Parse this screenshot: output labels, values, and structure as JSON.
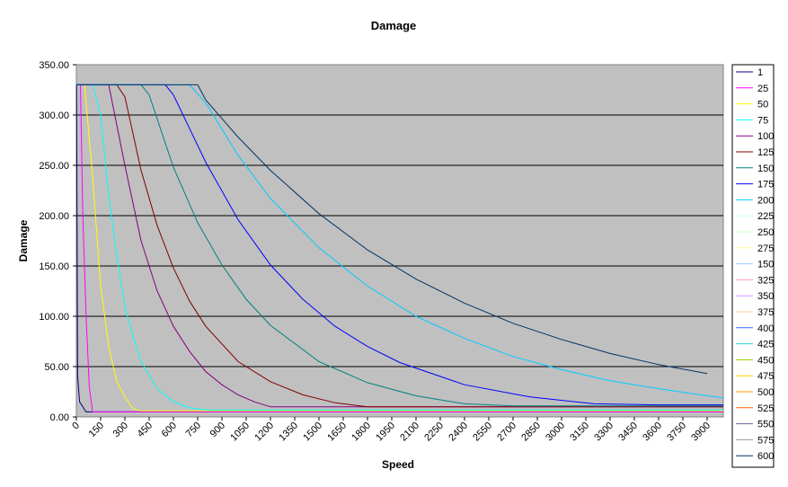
{
  "chart_data": {
    "type": "line",
    "title": "Damage",
    "xlabel": "Speed",
    "ylabel": "Damage",
    "xlim": [
      0,
      4000
    ],
    "ylim": [
      0,
      350
    ],
    "y_ticks": [
      "0.00",
      "50.00",
      "100.00",
      "150.00",
      "200.00",
      "250.00",
      "300.00",
      "350.00"
    ],
    "x_ticks": [
      "0",
      "150",
      "300",
      "450",
      "600",
      "750",
      "900",
      "1050",
      "1200",
      "1350",
      "1500",
      "1650",
      "1800",
      "1950",
      "2100",
      "2250",
      "2400",
      "2550",
      "2700",
      "2850",
      "3000",
      "3150",
      "3300",
      "3450",
      "3600",
      "3750",
      "3900"
    ],
    "grid": "horizontal",
    "legend_position": "right",
    "plot_background": "#C0C0C0",
    "series": [
      {
        "name": "1",
        "color": "#000080",
        "x": [
          0,
          1,
          8,
          20,
          60,
          4000
        ],
        "y": [
          330,
          330,
          40,
          15,
          5,
          5
        ]
      },
      {
        "name": "25",
        "color": "#FF00FF",
        "x": [
          0,
          25,
          40,
          60,
          80,
          100,
          160,
          4000
        ],
        "y": [
          330,
          330,
          200,
          100,
          30,
          5,
          5,
          5
        ]
      },
      {
        "name": "50",
        "color": "#FFFF00",
        "x": [
          0,
          50,
          100,
          150,
          200,
          250,
          300,
          350,
          400,
          4000
        ],
        "y": [
          330,
          330,
          240,
          130,
          70,
          35,
          20,
          8,
          6,
          6
        ]
      },
      {
        "name": "75",
        "color": "#00FFFF",
        "x": [
          0,
          100,
          150,
          200,
          250,
          300,
          350,
          400,
          500,
          600,
          700,
          800,
          4000
        ],
        "y": [
          330,
          330,
          300,
          220,
          160,
          110,
          80,
          55,
          28,
          15,
          9,
          7,
          7
        ]
      },
      {
        "name": "100",
        "color": "#800080",
        "x": [
          0,
          200,
          300,
          400,
          500,
          600,
          700,
          800,
          900,
          1000,
          1100,
          1200,
          4000
        ],
        "y": [
          330,
          330,
          250,
          175,
          125,
          90,
          65,
          45,
          32,
          22,
          15,
          10,
          10
        ]
      },
      {
        "name": "125",
        "color": "#800000",
        "x": [
          0,
          250,
          300,
          400,
          500,
          600,
          700,
          800,
          1000,
          1200,
          1400,
          1600,
          1800,
          4000
        ],
        "y": [
          330,
          330,
          318,
          245,
          190,
          148,
          115,
          90,
          55,
          35,
          22,
          14,
          10,
          10
        ]
      },
      {
        "name": "150",
        "color": "#008080",
        "x": [
          0,
          400,
          450,
          600,
          750,
          900,
          1050,
          1200,
          1500,
          1800,
          2100,
          2400,
          2700,
          4000
        ],
        "y": [
          330,
          330,
          320,
          248,
          193,
          151,
          117,
          91,
          55,
          34,
          21,
          13,
          11,
          11
        ]
      },
      {
        "name": "175",
        "color": "#0000FF",
        "x": [
          0,
          550,
          600,
          800,
          1000,
          1200,
          1400,
          1600,
          1800,
          2000,
          2400,
          2800,
          3200,
          3600,
          4000
        ],
        "y": [
          330,
          330,
          320,
          253,
          196,
          151,
          117,
          90,
          70,
          54,
          32,
          20,
          13,
          12,
          12
        ]
      },
      {
        "name": "200",
        "color": "#00CCFF",
        "x": [
          0,
          700,
          800,
          1000,
          1200,
          1500,
          1800,
          2100,
          2400,
          2700,
          3000,
          3300,
          3600,
          3900,
          4000
        ],
        "y": [
          330,
          330,
          312,
          260,
          217,
          168,
          130,
          100,
          78,
          60,
          47,
          36,
          28,
          21,
          19
        ]
      },
      {
        "name": "225",
        "color": "#CCFFFF",
        "x": [],
        "y": []
      },
      {
        "name": "250",
        "color": "#CCFFCC",
        "x": [],
        "y": []
      },
      {
        "name": "275",
        "color": "#FFFF99",
        "x": [],
        "y": []
      },
      {
        "name": "150",
        "color": "#99CCFF",
        "x": [],
        "y": []
      },
      {
        "name": "325",
        "color": "#FF99CC",
        "x": [],
        "y": []
      },
      {
        "name": "350",
        "color": "#CC99FF",
        "x": [],
        "y": []
      },
      {
        "name": "375",
        "color": "#FFCC99",
        "x": [],
        "y": []
      },
      {
        "name": "400",
        "color": "#3366FF",
        "x": [],
        "y": []
      },
      {
        "name": "425",
        "color": "#33CCCC",
        "x": [],
        "y": []
      },
      {
        "name": "450",
        "color": "#99CC00",
        "x": [],
        "y": []
      },
      {
        "name": "475",
        "color": "#FFCC00",
        "x": [],
        "y": []
      },
      {
        "name": "500",
        "color": "#FF9900",
        "x": [],
        "y": []
      },
      {
        "name": "525",
        "color": "#FF6600",
        "x": [],
        "y": []
      },
      {
        "name": "550",
        "color": "#666699",
        "x": [],
        "y": []
      },
      {
        "name": "575",
        "color": "#969696",
        "x": [],
        "y": []
      },
      {
        "name": "600",
        "color": "#003366",
        "x": [
          0,
          750,
          800,
          1000,
          1200,
          1500,
          1800,
          2100,
          2400,
          2700,
          3000,
          3300,
          3600,
          3900
        ],
        "y": [
          330,
          330,
          315,
          278,
          245,
          202,
          166,
          137,
          113,
          93,
          77,
          63,
          52,
          43
        ]
      }
    ]
  }
}
